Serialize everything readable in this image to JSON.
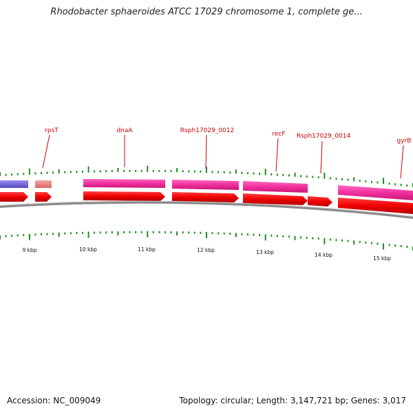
{
  "title": "Rhodobacter sphaeroides ATCC 17029 chromosome 1, complete ge...",
  "footer": {
    "accession": "Accession: NC_009049",
    "stats": "Topology: circular; Length: 3,147,721 bp; Genes: 3,017"
  },
  "colors": {
    "gene_blue": "#6f63d8",
    "gene_salmon": "#ea8585",
    "gene_pink": "#f0309e",
    "cds_red": "#f00000",
    "tick_green": "#1e8a1e",
    "backbone": "#888888",
    "label_red": "#cc0000"
  },
  "gene_labels": [
    {
      "name": "rpsT"
    },
    {
      "name": "dnaA"
    },
    {
      "name": "Rsph17029_0012"
    },
    {
      "name": "recF"
    },
    {
      "name": "Rsph17029_0014"
    },
    {
      "name": "gyrB"
    }
  ],
  "scale_labels": [
    "9 kbp",
    "10 kbp",
    "11 kbp",
    "12 kbp",
    "13 kbp",
    "14 kbp",
    "15 kbp"
  ]
}
